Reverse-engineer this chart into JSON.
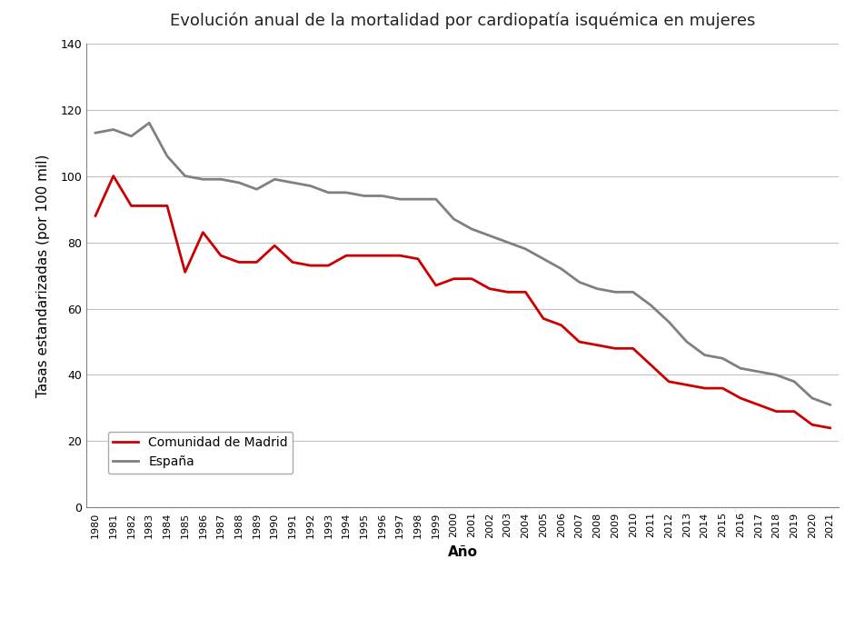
{
  "title": "Evolución anual de la mortalidad por cardiopatía isquémica en mujeres",
  "xlabel": "Año",
  "ylabel": "Tasas estandarizadas (por 100 mil)",
  "years": [
    1980,
    1981,
    1982,
    1983,
    1984,
    1985,
    1986,
    1987,
    1988,
    1989,
    1990,
    1991,
    1992,
    1993,
    1994,
    1995,
    1996,
    1997,
    1998,
    1999,
    2000,
    2001,
    2002,
    2003,
    2004,
    2005,
    2006,
    2007,
    2008,
    2009,
    2010,
    2011,
    2012,
    2013,
    2014,
    2015,
    2016,
    2017,
    2018,
    2019,
    2020,
    2021
  ],
  "madrid": [
    88,
    100,
    91,
    91,
    91,
    71,
    83,
    76,
    74,
    74,
    79,
    74,
    73,
    73,
    76,
    76,
    76,
    76,
    75,
    67,
    69,
    69,
    66,
    65,
    65,
    57,
    55,
    50,
    49,
    48,
    48,
    43,
    38,
    37,
    36,
    36,
    33,
    31,
    29,
    29,
    25,
    24
  ],
  "espana": [
    113,
    114,
    112,
    116,
    106,
    100,
    99,
    99,
    98,
    96,
    99,
    98,
    97,
    95,
    95,
    94,
    94,
    93,
    93,
    93,
    87,
    84,
    82,
    80,
    78,
    75,
    72,
    68,
    66,
    65,
    65,
    61,
    56,
    50,
    46,
    45,
    42,
    41,
    40,
    38,
    33,
    31
  ],
  "madrid_color": "#cc0000",
  "espana_color": "#808080",
  "ylim": [
    0,
    140
  ],
  "yticks": [
    0,
    20,
    40,
    60,
    80,
    100,
    120,
    140
  ],
  "legend_madrid": "Comunidad de Madrid",
  "legend_espana": "España",
  "linewidth": 2.0,
  "bg_color": "#ffffff",
  "grid_color": "#c0c0c0",
  "spine_color": "#808080",
  "title_fontsize": 13,
  "axis_label_fontsize": 11,
  "tick_fontsize": 9,
  "xtick_fontsize": 8,
  "legend_fontsize": 10
}
